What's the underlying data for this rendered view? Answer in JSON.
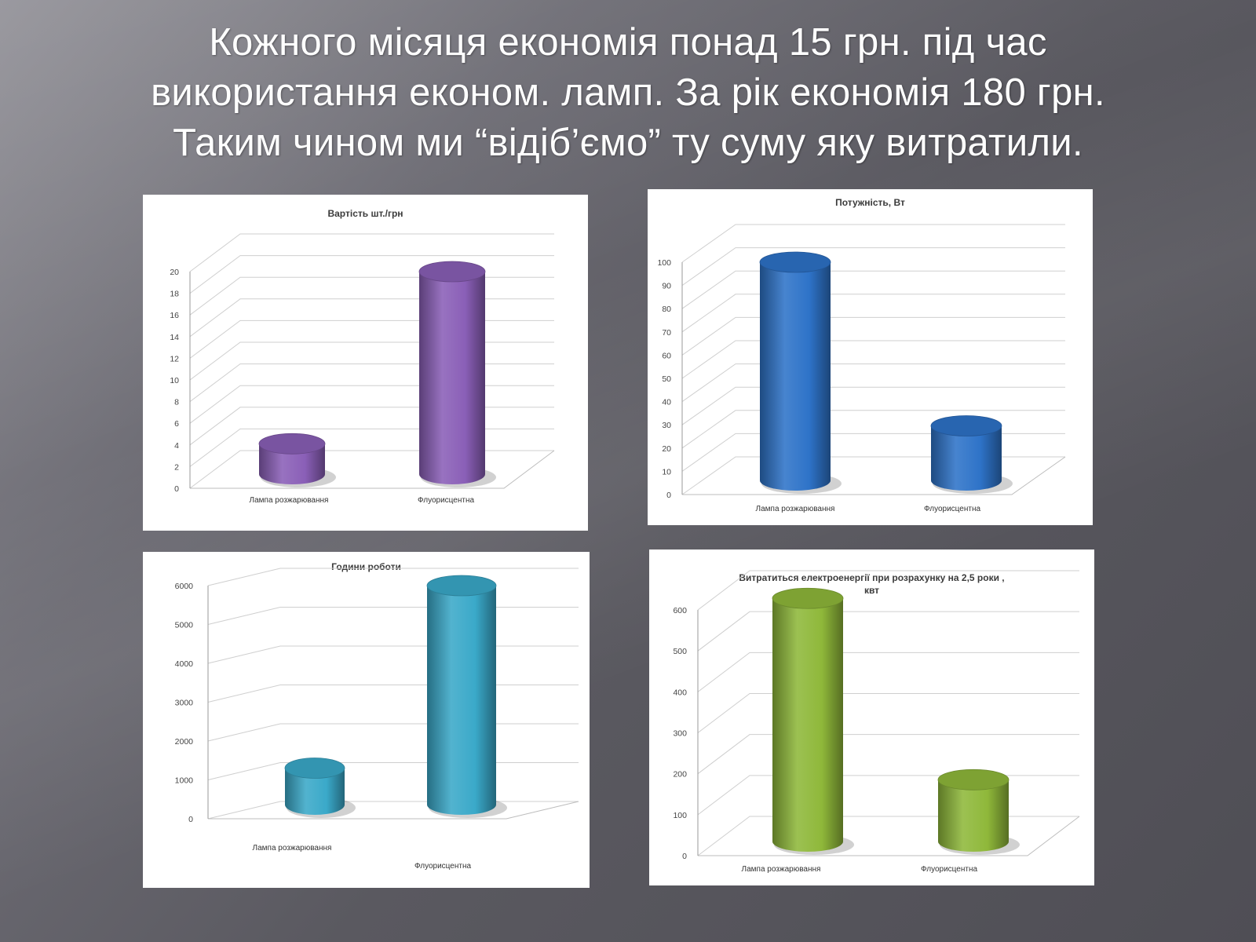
{
  "slide": {
    "title_lines": [
      "Кожного місяця економія понад 15 грн. під час",
      "використання економ. ламп. За рік економія 180 грн.",
      "Таким чином ми “відіб’ємо” ту суму яку витратили."
    ]
  },
  "chart_data": [
    {
      "type": "bar",
      "style": "3d-cylinder",
      "title": "Вартість  шт./грн",
      "categories": [
        "Лампа розжарювання",
        "Флуорисцентна"
      ],
      "values": [
        3,
        20
      ],
      "ylim": [
        0,
        20
      ],
      "yticks": [
        0,
        2,
        4,
        6,
        8,
        10,
        12,
        14,
        16,
        18,
        20
      ],
      "grid": true,
      "color": "#8a5fb7"
    },
    {
      "type": "bar",
      "style": "3d-cylinder",
      "title": "Потужність, Вт",
      "categories": [
        "Лампа розжарювання",
        "Флуорисцентна"
      ],
      "values": [
        100,
        25
      ],
      "ylim": [
        0,
        100
      ],
      "yticks": [
        0,
        10,
        20,
        30,
        40,
        50,
        60,
        70,
        80,
        90,
        100
      ],
      "grid": true,
      "color": "#2e73c8"
    },
    {
      "type": "bar",
      "style": "3d-cylinder",
      "title": "Години роботи",
      "categories": [
        "Лампа розжарювання",
        "Флуорисцентна"
      ],
      "values": [
        1000,
        6000
      ],
      "ylim": [
        0,
        6000
      ],
      "yticks": [
        0,
        1000,
        2000,
        3000,
        4000,
        5000,
        6000
      ],
      "grid": true,
      "color": "#3aa9c9"
    },
    {
      "type": "bar",
      "style": "3d-cylinder",
      "title": "Витратиться електроенергії  при розрахунку на 2,5 роки ,",
      "title_line2": "квт",
      "categories": [
        "Лампа розжарювання",
        "Флуорисцентна"
      ],
      "values": [
        630,
        160
      ],
      "ylim": [
        0,
        600
      ],
      "yticks": [
        0,
        100,
        200,
        300,
        400,
        500,
        600
      ],
      "grid": true,
      "color": "#8fb83a"
    }
  ]
}
